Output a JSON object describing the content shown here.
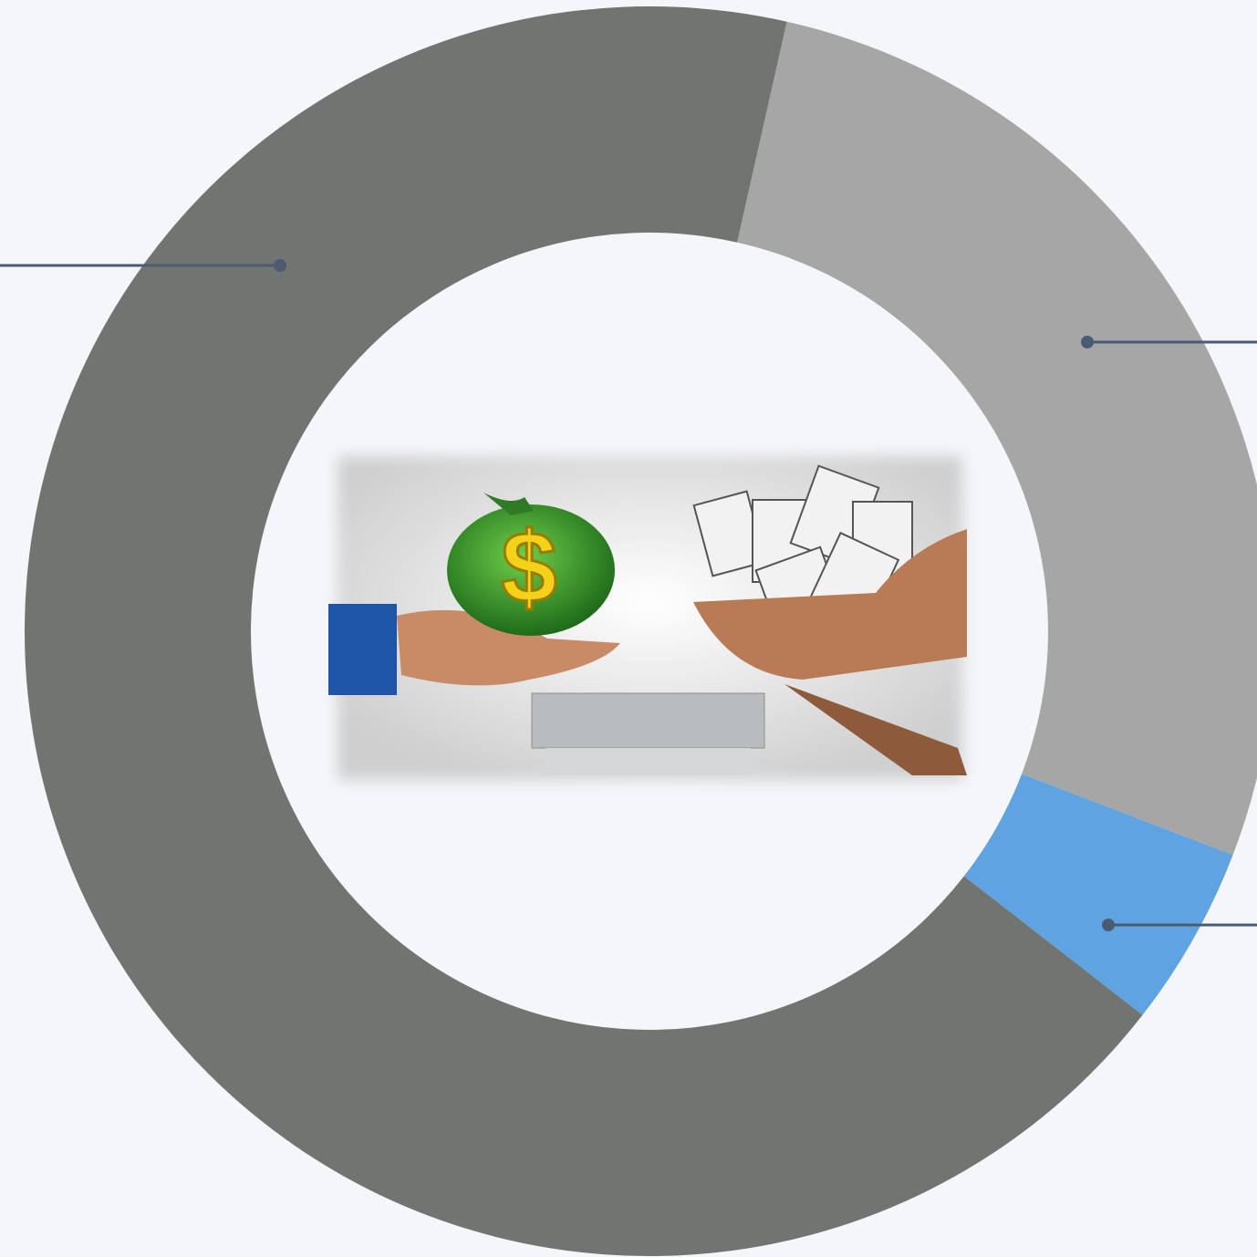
{
  "chart_data": {
    "type": "donut",
    "values": [
      27.3,
      4.7,
      68
    ],
    "colors": [
      "#a6a6a6",
      "#5fa4e0",
      "#727472"
    ]
  }
}
